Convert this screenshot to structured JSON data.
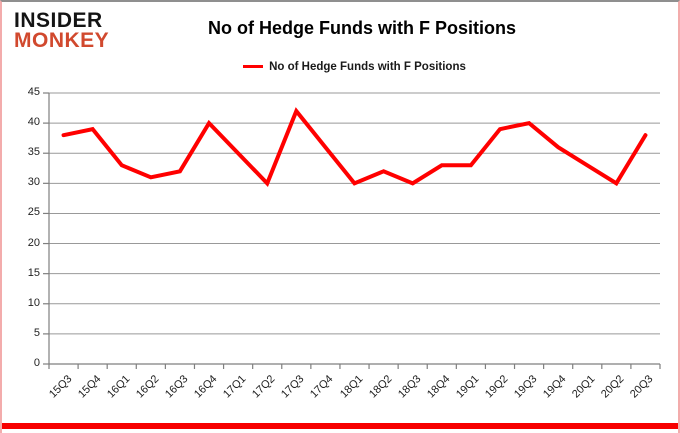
{
  "logo": {
    "line1": "INSIDER",
    "line2": "MONKEY",
    "accent_color": "#d1492e"
  },
  "header": {
    "title": "No of Hedge Funds with F Positions"
  },
  "legend": {
    "label": "No of Hedge Funds with F Positions",
    "line_color": "#ff0000"
  },
  "chart_data": {
    "type": "line",
    "title": "No of Hedge Funds with F Positions",
    "categories": [
      "15Q3",
      "15Q4",
      "16Q1",
      "16Q2",
      "16Q3",
      "16Q4",
      "17Q1",
      "17Q2",
      "17Q3",
      "17Q4",
      "18Q1",
      "18Q2",
      "18Q3",
      "18Q4",
      "19Q1",
      "19Q2",
      "19Q3",
      "19Q4",
      "20Q1",
      "20Q2",
      "20Q3"
    ],
    "series": [
      {
        "name": "No of Hedge Funds with F Positions",
        "color": "#ff0000",
        "values": [
          38,
          39,
          33,
          31,
          32,
          40,
          35,
          30,
          42,
          36,
          30,
          32,
          30,
          33,
          33,
          39,
          40,
          36,
          33,
          30,
          38
        ]
      }
    ],
    "xlabel": "",
    "ylabel": "",
    "ylim": [
      0,
      45
    ],
    "ytick_step": 5,
    "grid": "horizontal",
    "legend_position": "top-center"
  },
  "colors": {
    "grid": "#999999",
    "axis": "#7f7f7f",
    "tick": "#7f7f7f",
    "frame_border": "#f3acac",
    "bottom_bar": "#f70000",
    "text": "#1f1f1f"
  }
}
